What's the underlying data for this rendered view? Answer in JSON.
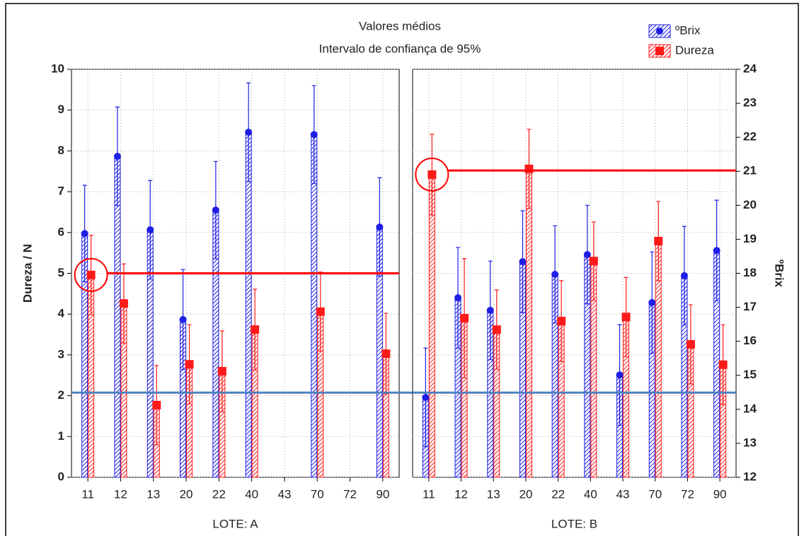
{
  "chart_data": [
    {
      "type": "bar",
      "title": "Valores médios",
      "subtitle": "Intervalo de confiança de 95%",
      "xlabel": "LOTE: A",
      "ylabel": "Dureza / N",
      "categories": [
        "11",
        "12",
        "13",
        "20",
        "22",
        "40",
        "43",
        "70",
        "72",
        "90"
      ],
      "ylim": [
        0,
        10
      ],
      "yticks": [
        0,
        1,
        2,
        3,
        4,
        5,
        6,
        7,
        8,
        9,
        10
      ],
      "y2lim": [
        12,
        24
      ],
      "grid": true,
      "legend": "upper right",
      "series": [
        {
          "name": "ºBrix",
          "color": "#1e1ee6",
          "axis": "y2",
          "marker": "circle",
          "values": [
            19.17,
            21.44,
            19.28,
            16.64,
            19.86,
            22.15,
            null,
            22.08,
            null,
            19.36
          ],
          "errors": [
            1.42,
            1.45,
            1.45,
            1.47,
            1.43,
            1.45,
            null,
            1.44,
            null,
            1.45
          ]
        },
        {
          "name": "Dureza",
          "color": "#ff1a1a",
          "marker": "square",
          "values": [
            4.96,
            4.26,
            1.77,
            2.77,
            2.6,
            3.62,
            null,
            4.06,
            null,
            3.03
          ],
          "errors": [
            0.97,
            0.97,
            0.97,
            0.97,
            0.99,
            0.99,
            null,
            0.97,
            null,
            0.99
          ]
        }
      ],
      "hlines": [
        {
          "value": 5,
          "color": "#ff0000"
        },
        {
          "value": 14.49,
          "axis": "y2",
          "color": "#4f81bd"
        }
      ]
    },
    {
      "type": "bar",
      "xlabel": "LOTE: B",
      "y2label": "ºBrix",
      "categories": [
        "11",
        "12",
        "13",
        "20",
        "22",
        "40",
        "43",
        "70",
        "72",
        "90"
      ],
      "ylim": [
        0,
        10
      ],
      "y2lim": [
        12,
        24
      ],
      "y2ticks": [
        12,
        13,
        14,
        15,
        16,
        17,
        18,
        19,
        20,
        21,
        22,
        23,
        24
      ],
      "grid": true,
      "series": [
        {
          "color": "#1e1ee6",
          "axis": "y2",
          "marker": "circle",
          "values": [
            14.35,
            17.28,
            16.91,
            18.34,
            17.97,
            18.55,
            15.01,
            17.14,
            17.93,
            18.67
          ],
          "errors": [
            1.45,
            1.48,
            1.45,
            1.5,
            1.43,
            1.45,
            1.48,
            1.49,
            1.45,
            1.48
          ]
        },
        {
          "color": "#ff1a1a",
          "marker": "square",
          "values": [
            7.42,
            3.9,
            3.62,
            7.56,
            3.83,
            5.3,
            3.93,
            5.79,
            3.26,
            2.76
          ],
          "errors": [
            0.99,
            1.46,
            0.97,
            0.97,
            0.99,
            0.96,
            0.97,
            0.97,
            0.97,
            0.98
          ]
        }
      ],
      "hlines": [
        {
          "value": 7.52,
          "color": "#ff0000"
        },
        {
          "value": 14.49,
          "axis": "y2",
          "color": "#4f81bd"
        }
      ]
    }
  ]
}
